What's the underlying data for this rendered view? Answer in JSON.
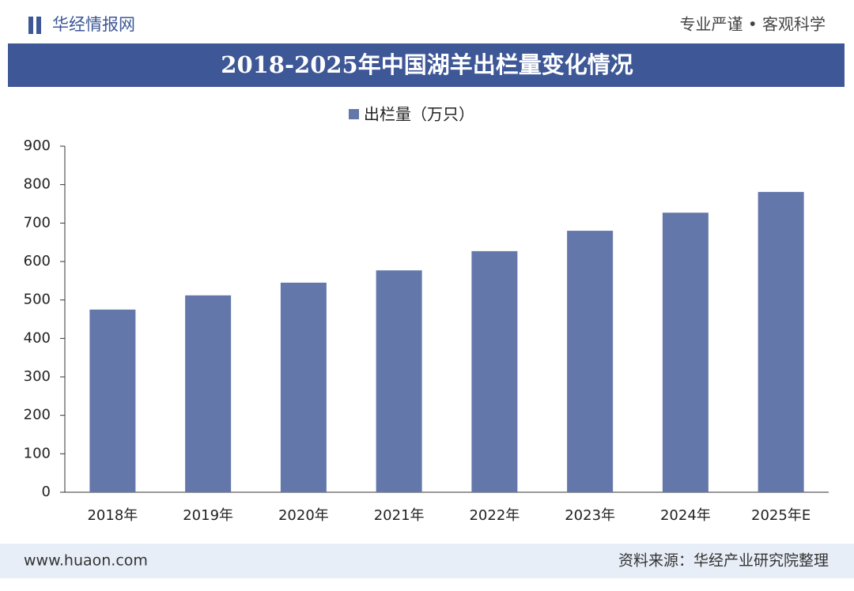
{
  "header": {
    "logo": "华经情报网",
    "slogan": "专业严谨 • 客观科学"
  },
  "chart_data": {
    "type": "bar",
    "title": "2018-2025年中国湖羊出栏量变化情况",
    "categories": [
      "2018年",
      "2019年",
      "2020年",
      "2021年",
      "2022年",
      "2023年",
      "2024年",
      "2025年E"
    ],
    "series": [
      {
        "name": "出栏量（万只）",
        "color": "#6477aa",
        "values": [
          475,
          512,
          545,
          577,
          627,
          680,
          727,
          781
        ]
      }
    ],
    "ylim": [
      0,
      900
    ],
    "yticks": [
      0,
      100,
      200,
      300,
      400,
      500,
      600,
      700,
      800,
      900
    ],
    "grid": false,
    "legend": "top"
  },
  "footer": {
    "website": "www.huaon.com",
    "source": "资料来源：华经产业研究院整理"
  }
}
